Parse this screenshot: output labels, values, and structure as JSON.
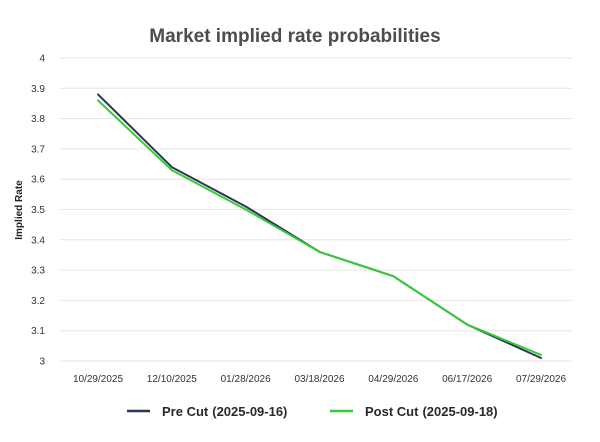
{
  "chart_data": {
    "type": "line",
    "title": "Market implied rate probabilities",
    "xlabel": "",
    "ylabel": "Implied Rate",
    "categories": [
      "10/29/2025",
      "12/10/2025",
      "01/28/2026",
      "03/18/2026",
      "04/29/2026",
      "06/17/2026",
      "07/29/2026"
    ],
    "y_ticks": [
      "4",
      "3.9",
      "3.8",
      "3.7",
      "3.6",
      "3.5",
      "3.4",
      "3.3",
      "3.2",
      "3.1",
      "3"
    ],
    "ylim": [
      3,
      4
    ],
    "grid": true,
    "legend_position": "bottom",
    "series": [
      {
        "name": "Pre Cut",
        "date": "(2025-09-16)",
        "color": "#2b3556",
        "values": [
          3.88,
          3.64,
          3.51,
          3.36,
          3.28,
          3.12,
          3.01
        ]
      },
      {
        "name": "Post Cut",
        "date": "(2025-09-18)",
        "color": "#35cc35",
        "values": [
          3.86,
          3.63,
          3.5,
          3.36,
          3.28,
          3.12,
          3.02
        ]
      }
    ]
  }
}
